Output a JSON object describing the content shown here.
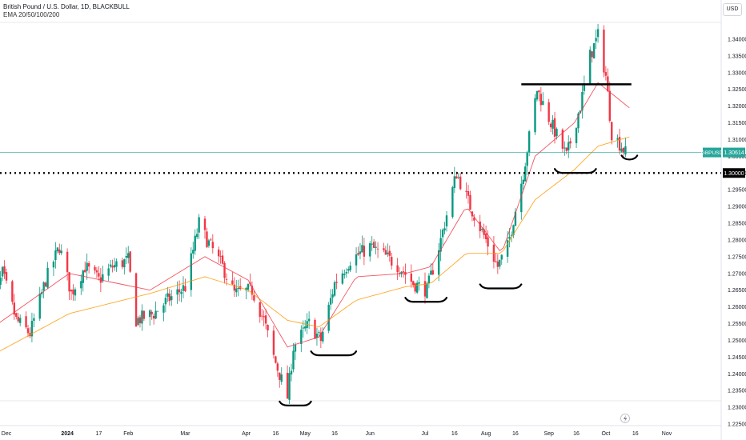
{
  "header": {
    "title": "British Pound / U.S. Dollar, 1D, BLACKBULL",
    "indicator": "EMA 20/50/100/200"
  },
  "currency_button": "USD",
  "colors": {
    "up": "#089981",
    "down": "#f23645",
    "ema_fast": "#f23645",
    "ema_slow": "#ff9800",
    "price_line": "#26a69a",
    "annotation": "#000000"
  },
  "price_tag": {
    "symbol": "GBPUSD",
    "value": "1.30614",
    "price": 1.30614
  },
  "level_tag": {
    "value": "1.30000",
    "price": 1.3
  },
  "icons": {
    "flash": "lightning-icon"
  },
  "chart_data": {
    "type": "candlestick",
    "ylim": [
      1.225,
      1.345
    ],
    "y_ticks": [
      "1.22500",
      "1.23000",
      "1.23500",
      "1.24000",
      "1.24500",
      "1.25000",
      "1.25500",
      "1.26000",
      "1.26500",
      "1.27000",
      "1.27500",
      "1.28000",
      "1.28500",
      "1.29000",
      "1.29500",
      "1.30000",
      "1.30500",
      "1.31000",
      "1.31500",
      "1.32000",
      "1.32500",
      "1.33000",
      "1.33500",
      "1.34000"
    ],
    "x_ticks": [
      {
        "label": "Dec",
        "date": "2023-12-01"
      },
      {
        "label": "2024",
        "date": "2024-01-01"
      },
      {
        "label": "17",
        "date": "2024-01-17"
      },
      {
        "label": "Feb",
        "date": "2024-02-01"
      },
      {
        "label": "Mar",
        "date": "2024-03-01"
      },
      {
        "label": "Apr",
        "date": "2024-04-01"
      },
      {
        "label": "16",
        "date": "2024-04-16"
      },
      {
        "label": "May",
        "date": "2024-05-01"
      },
      {
        "label": "16",
        "date": "2024-05-16"
      },
      {
        "label": "Jun",
        "date": "2024-06-03"
      },
      {
        "label": "Jul",
        "date": "2024-07-01"
      },
      {
        "label": "16",
        "date": "2024-07-16"
      },
      {
        "label": "Aug",
        "date": "2024-08-01"
      },
      {
        "label": "16",
        "date": "2024-08-16"
      },
      {
        "label": "Sep",
        "date": "2024-09-02"
      },
      {
        "label": "16",
        "date": "2024-09-16"
      },
      {
        "label": "Oct",
        "date": "2024-10-01"
      },
      {
        "label": "16",
        "date": "2024-10-16"
      },
      {
        "label": "Nov",
        "date": "2024-11-01"
      }
    ],
    "close_path": [
      [
        "2023-11-22",
        1.255
      ],
      [
        "2023-11-29",
        1.27
      ],
      [
        "2023-12-06",
        1.256
      ],
      [
        "2023-12-13",
        1.252
      ],
      [
        "2023-12-21",
        1.268
      ],
      [
        "2023-12-28",
        1.278
      ],
      [
        "2024-01-03",
        1.264
      ],
      [
        "2024-01-10",
        1.272
      ],
      [
        "2024-01-17",
        1.268
      ],
      [
        "2024-01-24",
        1.272
      ],
      [
        "2024-02-01",
        1.274
      ],
      [
        "2024-02-05",
        1.256
      ],
      [
        "2024-02-14",
        1.258
      ],
      [
        "2024-02-21",
        1.262
      ],
      [
        "2024-03-01",
        1.266
      ],
      [
        "2024-03-08",
        1.285
      ],
      [
        "2024-03-12",
        1.28
      ],
      [
        "2024-03-20",
        1.272
      ],
      [
        "2024-03-26",
        1.264
      ],
      [
        "2024-04-04",
        1.265
      ],
      [
        "2024-04-10",
        1.256
      ],
      [
        "2024-04-15",
        1.245
      ],
      [
        "2024-04-22",
        1.233
      ],
      [
        "2024-04-25",
        1.248
      ],
      [
        "2024-05-03",
        1.255
      ],
      [
        "2024-05-09",
        1.25
      ],
      [
        "2024-05-16",
        1.267
      ],
      [
        "2024-05-24",
        1.274
      ],
      [
        "2024-06-03",
        1.278
      ],
      [
        "2024-06-11",
        1.275
      ],
      [
        "2024-06-18",
        1.272
      ],
      [
        "2024-06-25",
        1.267
      ],
      [
        "2024-07-02",
        1.265
      ],
      [
        "2024-07-09",
        1.28
      ],
      [
        "2024-07-17",
        1.3
      ],
      [
        "2024-07-24",
        1.29
      ],
      [
        "2024-08-01",
        1.28
      ],
      [
        "2024-08-07",
        1.272
      ],
      [
        "2024-08-12",
        1.278
      ],
      [
        "2024-08-20",
        1.3
      ],
      [
        "2024-08-27",
        1.325
      ],
      [
        "2024-09-03",
        1.315
      ],
      [
        "2024-09-11",
        1.305
      ],
      [
        "2024-09-18",
        1.32
      ],
      [
        "2024-09-23",
        1.335
      ],
      [
        "2024-09-27",
        1.341
      ],
      [
        "2024-10-01",
        1.329
      ],
      [
        "2024-10-04",
        1.312
      ],
      [
        "2024-10-09",
        1.308
      ],
      [
        "2024-10-11",
        1.3061
      ]
    ],
    "ema_fast_path": [
      [
        "2023-11-22",
        1.253
      ],
      [
        "2024-01-02",
        1.27
      ],
      [
        "2024-02-12",
        1.265
      ],
      [
        "2024-03-11",
        1.275
      ],
      [
        "2024-04-02",
        1.268
      ],
      [
        "2024-04-22",
        1.248
      ],
      [
        "2024-05-08",
        1.251
      ],
      [
        "2024-05-27",
        1.269
      ],
      [
        "2024-06-21",
        1.27
      ],
      [
        "2024-07-04",
        1.272
      ],
      [
        "2024-07-22",
        1.29
      ],
      [
        "2024-08-09",
        1.276
      ],
      [
        "2024-08-26",
        1.305
      ],
      [
        "2024-09-15",
        1.315
      ],
      [
        "2024-09-27",
        1.327
      ],
      [
        "2024-10-14",
        1.319
      ]
    ],
    "ema_slow_path": [
      [
        "2023-11-22",
        1.245
      ],
      [
        "2024-01-02",
        1.258
      ],
      [
        "2024-02-12",
        1.264
      ],
      [
        "2024-03-11",
        1.269
      ],
      [
        "2024-04-02",
        1.265
      ],
      [
        "2024-04-22",
        1.256
      ],
      [
        "2024-05-08",
        1.254
      ],
      [
        "2024-05-27",
        1.262
      ],
      [
        "2024-06-21",
        1.266
      ],
      [
        "2024-07-04",
        1.267
      ],
      [
        "2024-07-22",
        1.276
      ],
      [
        "2024-08-09",
        1.276
      ],
      [
        "2024-08-26",
        1.292
      ],
      [
        "2024-09-15",
        1.301
      ],
      [
        "2024-09-27",
        1.308
      ],
      [
        "2024-10-14",
        1.311
      ]
    ],
    "annotations": [
      {
        "type": "resistance_line",
        "start": "2024-08-19",
        "end": "2024-10-14",
        "price": 1.3265
      },
      {
        "type": "swing_low",
        "start": "2024-04-18",
        "end": "2024-05-04",
        "price": 1.231
      },
      {
        "type": "swing_low",
        "start": "2024-05-04",
        "end": "2024-05-27",
        "price": 1.246
      },
      {
        "type": "swing_low",
        "start": "2024-06-21",
        "end": "2024-07-12",
        "price": 1.262
      },
      {
        "type": "swing_low",
        "start": "2024-07-29",
        "end": "2024-08-19",
        "price": 1.266
      },
      {
        "type": "swing_low",
        "start": "2024-09-05",
        "end": "2024-09-26",
        "price": 1.3005
      },
      {
        "type": "swing_low",
        "start": "2024-10-09",
        "end": "2024-10-17",
        "price": 1.3045
      }
    ],
    "grid": false,
    "legend": "top-left"
  }
}
